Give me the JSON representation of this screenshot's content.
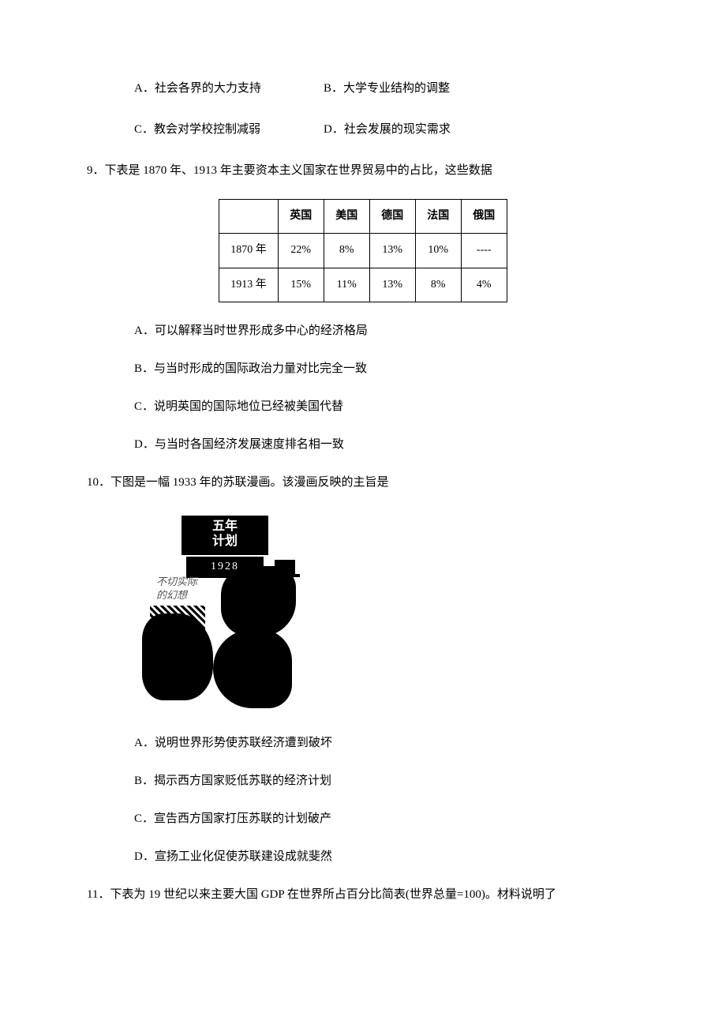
{
  "q8_options": {
    "a": "A．社会各界的大力支持",
    "b": "B．大学专业结构的调整",
    "c": "C．教会对学校控制减弱",
    "d": "D．社会发展的现实需求"
  },
  "q9": {
    "num": "9．",
    "text": "下表是 1870 年、1913 年主要资本主义国家在世界贸易中的占比，这些数据",
    "table": {
      "header_blank": "",
      "countries": [
        "英国",
        "美国",
        "德国",
        "法国",
        "俄国"
      ],
      "rows": [
        {
          "year": "1870 年",
          "vals": [
            "22%",
            "8%",
            "13%",
            "10%",
            "----"
          ]
        },
        {
          "year": "1913 年",
          "vals": [
            "15%",
            "11%",
            "13%",
            "8%",
            "4%"
          ]
        }
      ]
    },
    "options": {
      "a": "A．可以解释当时世界形成多中心的经济格局",
      "b": "B．与当时形成的国际政治力量对比完全一致",
      "c": "C．说明英国的国际地位已经被美国代替",
      "d": "D．与当时各国经济发展速度排名相一致"
    }
  },
  "q10": {
    "num": "10．",
    "text": "下图是一幅 1933 年的苏联漫画。该漫画反映的主旨是",
    "cartoon": {
      "banner_line1": "五年",
      "banner_line2": "计划",
      "year": "1928",
      "note_line1": "不切实际",
      "note_line2": "的幻想"
    },
    "options": {
      "a": "A．说明世界形势使苏联经济遭到破坏",
      "b": "B．揭示西方国家贬低苏联的经济计划",
      "c": "C．宣告西方国家打压苏联的计划破产",
      "d": "D．宣扬工业化促使苏联建设成就斐然"
    }
  },
  "q11": {
    "num": "11．",
    "text": "下表为 19 世纪以来主要大国 GDP 在世界所占百分比简表(世界总量=100)。材料说明了"
  }
}
